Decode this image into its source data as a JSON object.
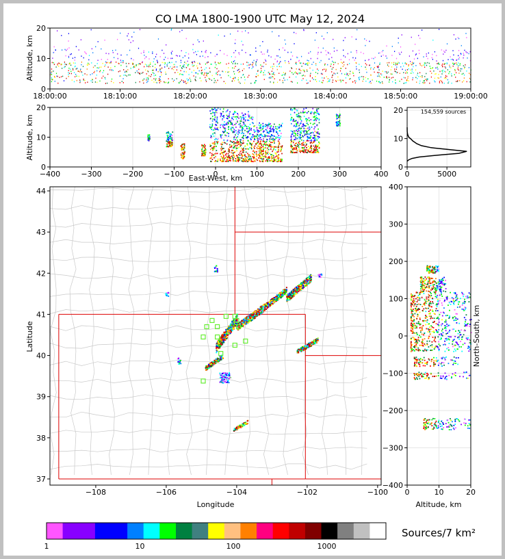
{
  "title": "CO LMA 1800-1900 UTC May 12, 2024",
  "panels": {
    "time_height": {
      "ylabel": "Altitude, km",
      "xticks": [
        "18:00:00",
        "18:10:00",
        "18:20:00",
        "18:30:00",
        "18:40:00",
        "18:50:00",
        "19:00:00"
      ],
      "yticks": [
        "0",
        "10",
        "20"
      ]
    },
    "ew_height": {
      "ylabel": "Altitude, km",
      "xlabel": "East-West, km",
      "xticks": [
        "−400",
        "−300",
        "−200",
        "−100",
        "0",
        "100",
        "200",
        "300",
        "400"
      ],
      "yticks": [
        "0",
        "10",
        "20"
      ]
    },
    "histogram": {
      "annotation": "154,559 sources",
      "xticks": [
        "0",
        "5000"
      ],
      "yticks": [
        "0",
        "10",
        "20"
      ]
    },
    "plan_view": {
      "xlabel": "Longitude",
      "ylabel": "Latitude",
      "xticks": [
        "−108",
        "−106",
        "−104",
        "−102",
        "−100"
      ],
      "yticks": [
        "37",
        "38",
        "39",
        "40",
        "41",
        "42",
        "43",
        "44"
      ]
    },
    "ns_height": {
      "xlabel": "Altitude, km",
      "ylabel": "North-South, km",
      "xticks": [
        "0",
        "10",
        "20"
      ],
      "yticks": [
        "−400",
        "−300",
        "−200",
        "−100",
        "0",
        "100",
        "200",
        "300",
        "400"
      ]
    }
  },
  "colorbar": {
    "label": "Sources/7 km²",
    "tick_labels": [
      "1",
      "10",
      "100",
      "1000"
    ],
    "colors": [
      "#ff55ff",
      "#8800ff",
      "#8800ff",
      "#0000ff",
      "#0000ff",
      "#0080ff",
      "#00ffff",
      "#00ff00",
      "#008040",
      "#408080",
      "#ffff00",
      "#ffc080",
      "#ff8000",
      "#ff0080",
      "#ff0000",
      "#c00000",
      "#800000",
      "#000000",
      "#808080",
      "#c0c0c0",
      "#ffffff"
    ]
  },
  "chart_data": [
    {
      "type": "heatmap",
      "name_hint": "time-height",
      "xlabel": "",
      "ylabel": "Altitude, km",
      "xlim": [
        "18:00:00",
        "19:00:00"
      ],
      "ylim": [
        0,
        20
      ],
      "x_tick_labels": [
        "18:00:00",
        "18:10:00",
        "18:20:00",
        "18:30:00",
        "18:40:00",
        "18:50:00",
        "19:00:00"
      ],
      "y_ticks": [
        0,
        10,
        20
      ],
      "dense_altitude_band_km": [
        2,
        9
      ],
      "max_altitude_km": 20
    },
    {
      "type": "heatmap",
      "name_hint": "east-west vs altitude",
      "xlabel": "East-West, km",
      "ylabel": "Altitude, km",
      "xlim": [
        -400,
        400
      ],
      "ylim": [
        0,
        20
      ],
      "x_ticks": [
        -400,
        -300,
        -200,
        -100,
        0,
        100,
        200,
        300,
        400
      ],
      "y_ticks": [
        0,
        10,
        20
      ],
      "clusters": [
        {
          "x": [
            -165,
            -160
          ],
          "y": [
            9,
            11
          ]
        },
        {
          "x": [
            -120,
            -105
          ],
          "y": [
            7,
            12
          ]
        },
        {
          "x": [
            -85,
            -75
          ],
          "y": [
            3,
            8
          ]
        },
        {
          "x": [
            -35,
            -25
          ],
          "y": [
            4,
            8
          ]
        },
        {
          "x": [
            -15,
            5
          ],
          "y": [
            2,
            20
          ]
        },
        {
          "x": [
            10,
            30
          ],
          "y": [
            2,
            20
          ]
        },
        {
          "x": [
            30,
            90
          ],
          "y": [
            2,
            19
          ]
        },
        {
          "x": [
            90,
            160
          ],
          "y": [
            2,
            15
          ]
        },
        {
          "x": [
            180,
            250
          ],
          "y": [
            5,
            20
          ]
        },
        {
          "x": [
            290,
            300
          ],
          "y": [
            14,
            18
          ]
        }
      ]
    },
    {
      "type": "line",
      "name_hint": "source count by altitude",
      "annotation": "154,559 sources",
      "xlim": [
        0,
        8000
      ],
      "ylim": [
        0,
        21
      ],
      "x_ticks": [
        0,
        5000
      ],
      "y_ticks": [
        0,
        10,
        20
      ],
      "x": [
        0,
        200,
        600,
        1500,
        4000,
        6500,
        7500,
        5000,
        3000,
        1800,
        1200,
        900,
        700,
        500,
        200,
        60,
        10,
        0
      ],
      "y": [
        2,
        2.5,
        3,
        3.5,
        4.2,
        4.8,
        5.5,
        6.2,
        6.8,
        7.5,
        8.2,
        8.8,
        9.2,
        9.8,
        10.5,
        11.5,
        12.5,
        14
      ]
    },
    {
      "type": "heatmap",
      "name_hint": "plan view",
      "xlabel": "Longitude",
      "ylabel": "Latitude",
      "xlim": [
        -109.3,
        -99.9
      ],
      "ylim": [
        36.85,
        44.1
      ],
      "x_ticks": [
        -108,
        -106,
        -104,
        -102,
        -100
      ],
      "y_ticks": [
        37,
        38,
        39,
        40,
        41,
        42,
        43,
        44
      ],
      "station_markers": [
        [
          -104.7,
          40.85
        ],
        [
          -104.55,
          40.7
        ],
        [
          -104.85,
          40.7
        ],
        [
          -104.95,
          40.45
        ],
        [
          -104.55,
          40.45
        ],
        [
          -104.05,
          40.95
        ],
        [
          -104.0,
          40.85
        ],
        [
          -104.3,
          40.95
        ],
        [
          -104.05,
          40.25
        ],
        [
          -103.75,
          40.35
        ],
        [
          -104.45,
          40.05
        ],
        [
          -104.95,
          39.38
        ],
        [
          -103.95,
          40.7
        ]
      ],
      "storm_clusters": [
        {
          "lon": [
            -104.6,
            -104.0
          ],
          "lat": [
            40.2,
            40.9
          ]
        },
        {
          "lon": [
            -104.0,
            -103.2
          ],
          "lat": [
            40.7,
            41.2
          ]
        },
        {
          "lon": [
            -103.2,
            -102.6
          ],
          "lat": [
            41.2,
            41.6
          ]
        },
        {
          "lon": [
            -102.6,
            -101.9
          ],
          "lat": [
            41.4,
            41.9
          ]
        },
        {
          "lon": [
            -102.3,
            -101.7
          ],
          "lat": [
            40.1,
            40.4
          ]
        },
        {
          "lon": [
            -104.9,
            -104.4
          ],
          "lat": [
            39.7,
            40.0
          ]
        },
        {
          "lon": [
            -104.5,
            -104.2
          ],
          "lat": [
            39.35,
            39.6
          ]
        },
        {
          "lon": [
            -104.1,
            -103.7
          ],
          "lat": [
            38.2,
            38.4
          ]
        },
        {
          "lon": [
            -104.65,
            -104.55
          ],
          "lat": [
            42.05,
            42.2
          ]
        },
        {
          "lon": [
            -106.05,
            -105.95
          ],
          "lat": [
            41.45,
            41.55
          ]
        },
        {
          "lon": [
            -105.7,
            -105.6
          ],
          "lat": [
            39.8,
            39.95
          ]
        },
        {
          "lon": [
            -101.7,
            -101.6
          ],
          "lat": [
            41.9,
            42.0
          ]
        }
      ],
      "region_boundaries_red": true
    },
    {
      "type": "heatmap",
      "name_hint": "altitude vs north-south",
      "xlabel": "Altitude, km",
      "ylabel": "North-South, km",
      "xlim": [
        0,
        20
      ],
      "ylim": [
        -400,
        400
      ],
      "x_ticks": [
        0,
        10,
        20
      ],
      "y_ticks": [
        -400,
        -300,
        -200,
        -100,
        0,
        100,
        200,
        300,
        400
      ],
      "clusters": [
        {
          "ns": [
            170,
            190
          ],
          "alt": [
            6,
            10
          ]
        },
        {
          "ns": [
            120,
            160
          ],
          "alt": [
            4,
            12
          ]
        },
        {
          "ns": [
            -40,
            120
          ],
          "alt": [
            1,
            20
          ]
        },
        {
          "ns": [
            -80,
            -55
          ],
          "alt": [
            2,
            16
          ]
        },
        {
          "ns": [
            -115,
            -95
          ],
          "alt": [
            2,
            20
          ]
        },
        {
          "ns": [
            -250,
            -220
          ],
          "alt": [
            5,
            20
          ]
        }
      ]
    }
  ]
}
